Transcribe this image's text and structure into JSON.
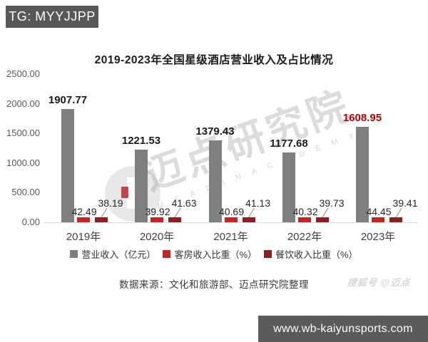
{
  "badge": {
    "text": "TG: MYYJJPP"
  },
  "chart_data": {
    "type": "bar",
    "title": "2019-2023年全国星级酒店营业收入及占比情况",
    "categories": [
      "2019年",
      "2020年",
      "2021年",
      "2022年",
      "2023年"
    ],
    "series": [
      {
        "name": "营业收入（亿元）",
        "color": "#7f7f7f",
        "values": [
          1907.77,
          1221.53,
          1379.43,
          1177.68,
          1608.95
        ]
      },
      {
        "name": "客房收入比重（%）",
        "color": "#c52422",
        "values": [
          42.49,
          39.92,
          40.69,
          40.32,
          44.45
        ]
      },
      {
        "name": "餐饮收入比重（%）",
        "color": "#8e1f1f",
        "values": [
          38.19,
          41.63,
          41.13,
          39.73,
          39.41
        ]
      }
    ],
    "ylim": [
      0,
      2500
    ],
    "ytick_interval": 500,
    "ytick_decimals": 2,
    "grid": false,
    "legend_position": "bottom",
    "value_label_highlight": {
      "index": 4,
      "color": "#c00000"
    }
  },
  "source_note": "数据来源：文化和旅游部、迈点研究院整理",
  "watermark": {
    "main": "迈点研究院",
    "sub": "M E A D I N   A C A D E M Y",
    "corner": "搜狐号 @迈点"
  },
  "footer": {
    "url": "www.wb-kaiyunsports.com"
  }
}
